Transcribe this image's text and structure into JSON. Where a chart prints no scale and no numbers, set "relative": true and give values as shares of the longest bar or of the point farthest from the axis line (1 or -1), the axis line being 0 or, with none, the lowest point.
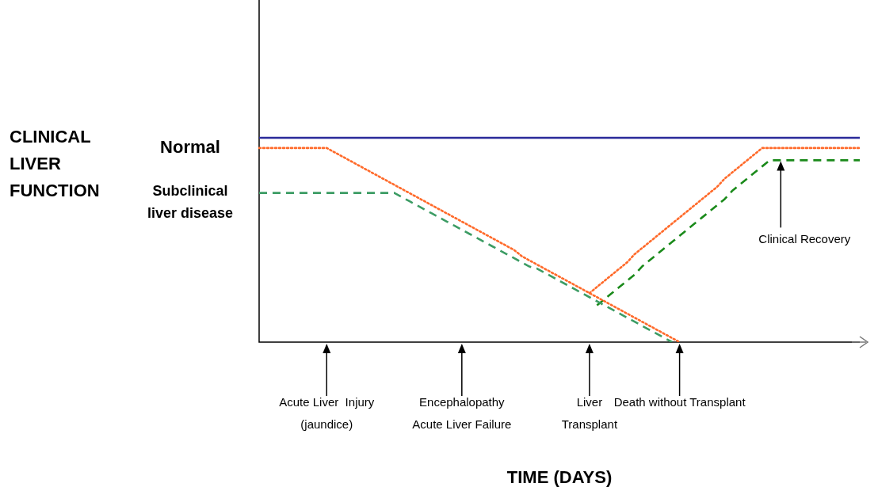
{
  "chart_data": {
    "type": "line",
    "relative": true,
    "xlabel": "TIME (DAYS)",
    "legend": false,
    "marker": "none",
    "categories": [
      null,
      null,
      null,
      null,
      null,
      null,
      null,
      null,
      null,
      "Acute Liver  Injury\n(jaundice)",
      null,
      null,
      null,
      null,
      null,
      null,
      null,
      null,
      null,
      null,
      null,
      null,
      null,
      null,
      null,
      null,
      null,
      "Encephalopathy\nAcute Liver Failure",
      null,
      null,
      null,
      null,
      null,
      null,
      null,
      null,
      null,
      null,
      null,
      null,
      null,
      null,
      null,
      null,
      "Liver\nTransplant",
      null,
      null,
      null,
      null,
      null,
      null,
      null,
      null,
      null,
      null,
      null,
      "Death without Transplant",
      null,
      null,
      null,
      null,
      null,
      null,
      null,
      null,
      null,
      null,
      null,
      null,
      null,
      null,
      null,
      null,
      null,
      null,
      null,
      null,
      null,
      null,
      null,
      null
    ],
    "series": [
      {
        "color": "#2b2b9a",
        "line_style": "solid",
        "values": [
          1,
          1,
          1,
          1,
          1,
          1,
          1,
          1,
          1,
          1,
          1,
          1,
          1,
          1,
          1,
          1,
          1,
          1,
          1,
          1,
          1,
          1,
          1,
          1,
          1,
          1,
          1,
          1,
          1,
          1,
          1,
          1,
          1,
          1,
          1,
          1,
          1,
          1,
          1,
          1,
          1,
          1,
          1,
          1,
          1,
          1,
          1,
          1,
          1,
          1,
          1,
          1,
          1,
          1,
          1,
          1,
          1,
          1,
          1,
          1,
          1,
          1,
          1,
          1,
          1,
          1,
          1,
          1,
          1,
          1,
          1,
          1,
          1,
          1,
          1,
          1,
          1,
          1,
          1,
          1,
          1
        ]
      },
      {
        "color": "#ff6a2a",
        "line_style": "dotted",
        "values": [
          0.95,
          0.95,
          0.95,
          0.95,
          0.95,
          0.95,
          0.95,
          0.95,
          0.95,
          0.95,
          0.93,
          0.91,
          0.89,
          0.87,
          0.85,
          0.83,
          0.81,
          0.79,
          0.77,
          0.75,
          0.73,
          0.71,
          0.69,
          0.67,
          0.65,
          0.63,
          0.61,
          0.59,
          0.57,
          0.55,
          0.53,
          0.51,
          0.49,
          0.47,
          0.45,
          0.42,
          0.4,
          0.38,
          0.36,
          0.34,
          0.32,
          0.3,
          0.28,
          0.26,
          0.24,
          0.22,
          0.2,
          0.18,
          0.16,
          0.14,
          0.12,
          0.1,
          0.08,
          0.06,
          0.04,
          0.02,
          0,
          null,
          null,
          null,
          null,
          null,
          null,
          null,
          null,
          null,
          null,
          null,
          null,
          null,
          null,
          null,
          null,
          null,
          null,
          null,
          null,
          null,
          null,
          null,
          null
        ]
      },
      {
        "color": "#ff6a2a",
        "line_style": "dotted",
        "values": [
          null,
          null,
          null,
          null,
          null,
          null,
          null,
          null,
          null,
          null,
          null,
          null,
          null,
          null,
          null,
          null,
          null,
          null,
          null,
          null,
          null,
          null,
          null,
          null,
          null,
          null,
          null,
          null,
          null,
          null,
          null,
          null,
          null,
          null,
          null,
          null,
          null,
          null,
          null,
          null,
          null,
          null,
          null,
          null,
          0.24,
          0.27,
          0.3,
          0.33,
          0.36,
          0.39,
          0.43,
          0.46,
          0.49,
          0.52,
          0.55,
          0.58,
          0.61,
          0.64,
          0.67,
          0.7,
          0.73,
          0.76,
          0.8,
          0.83,
          0.86,
          0.89,
          0.92,
          0.95,
          0.95,
          0.95,
          0.95,
          0.95,
          0.95,
          0.95,
          0.95,
          0.95,
          0.95,
          0.95,
          0.95,
          0.95,
          0.95
        ]
      },
      {
        "color": "#3c9c64",
        "line_style": "dashed",
        "values": [
          0.73,
          0.73,
          0.73,
          0.73,
          0.73,
          0.73,
          0.73,
          0.73,
          0.73,
          0.73,
          0.73,
          0.73,
          0.73,
          0.73,
          0.73,
          0.73,
          0.73,
          0.73,
          0.73,
          0.71,
          0.69,
          0.67,
          0.65,
          0.63,
          0.61,
          0.59,
          0.57,
          0.55,
          0.53,
          0.51,
          0.49,
          0.47,
          0.45,
          0.43,
          0.41,
          0.39,
          0.37,
          0.36,
          0.34,
          0.32,
          0.3,
          0.28,
          0.26,
          0.24,
          0.22,
          0.2,
          0.18,
          0.16,
          0.14,
          0.12,
          0.1,
          0.08,
          0.06,
          0.04,
          0.02,
          0,
          null,
          null,
          null,
          null,
          null,
          null,
          null,
          null,
          null,
          null,
          null,
          null,
          null,
          null,
          null,
          null,
          null,
          null,
          null,
          null,
          null,
          null,
          null,
          null,
          null
        ]
      },
      {
        "color": "#1a8a1a",
        "line_style": "dashed",
        "values": [
          null,
          null,
          null,
          null,
          null,
          null,
          null,
          null,
          null,
          null,
          null,
          null,
          null,
          null,
          null,
          null,
          null,
          null,
          null,
          null,
          null,
          null,
          null,
          null,
          null,
          null,
          null,
          null,
          null,
          null,
          null,
          null,
          null,
          null,
          null,
          null,
          null,
          null,
          null,
          null,
          null,
          null,
          null,
          null,
          null,
          0.18,
          0.21,
          0.24,
          0.27,
          0.3,
          0.33,
          0.37,
          0.4,
          0.43,
          0.46,
          0.49,
          0.52,
          0.55,
          0.58,
          0.61,
          0.64,
          0.67,
          0.7,
          0.74,
          0.77,
          0.8,
          0.83,
          0.86,
          0.89,
          0.89,
          0.89,
          0.89,
          0.89,
          0.89,
          0.89,
          0.89,
          0.89,
          0.89,
          0.89,
          0.89,
          0.89
        ]
      }
    ],
    "annotations": [
      "CLINICAL LIVER FUNCTION",
      "Normal",
      "Subclinical liver disease",
      "Clinical Recovery"
    ]
  }
}
